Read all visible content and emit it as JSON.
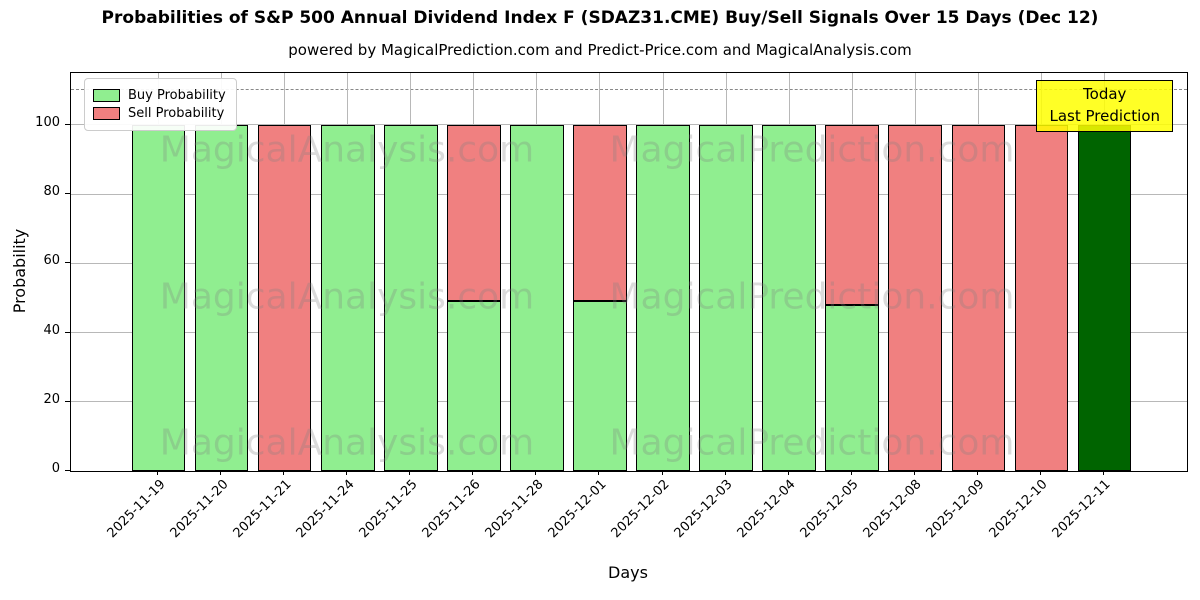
{
  "chart_data": {
    "type": "bar",
    "stacked": true,
    "title": "Probabilities of S&P 500 Annual Dividend Index F (SDAZ31.CME) Buy/Sell Signals Over 15 Days (Dec 12)",
    "subtitle": "powered by MagicalPrediction.com and Predict-Price.com and MagicalAnalysis.com",
    "xlabel": "Days",
    "ylabel": "Probability",
    "categories": [
      "2025-11-19",
      "2025-11-20",
      "2025-11-21",
      "2025-11-24",
      "2025-11-25",
      "2025-11-26",
      "2025-11-28",
      "2025-12-01",
      "2025-12-02",
      "2025-12-03",
      "2025-12-04",
      "2025-12-05",
      "2025-12-08",
      "2025-12-09",
      "2025-12-10",
      "2025-12-11"
    ],
    "series": [
      {
        "name": "Buy Probability",
        "color": "#90EE90",
        "values": [
          100,
          100,
          0,
          100,
          100,
          49,
          100,
          49,
          100,
          100,
          100,
          48,
          0,
          0,
          0,
          100
        ]
      },
      {
        "name": "Sell Probability",
        "color": "#F08080",
        "values": [
          0,
          0,
          100,
          0,
          0,
          51,
          0,
          51,
          0,
          0,
          0,
          52,
          100,
          100,
          100,
          0
        ]
      }
    ],
    "today": {
      "index": 15,
      "bar_color": "#006400",
      "box_color": "#FFFF00",
      "label_lines": [
        "Today",
        "Last Prediction"
      ]
    },
    "yticks": [
      0,
      20,
      40,
      60,
      80,
      100
    ],
    "ylim": [
      0,
      115
    ],
    "dashed_guideline_y": 110,
    "grid": true,
    "legend_position": "upper left",
    "colors": {
      "bar_edge": "#000000",
      "grid": "#b8b8b8",
      "dashed_line": "#888888",
      "axis": "#000000",
      "watermark": "#808080"
    }
  },
  "watermarks": {
    "left_text": "MagicalAnalysis.com",
    "right_text": "MagicalPrediction.com"
  }
}
